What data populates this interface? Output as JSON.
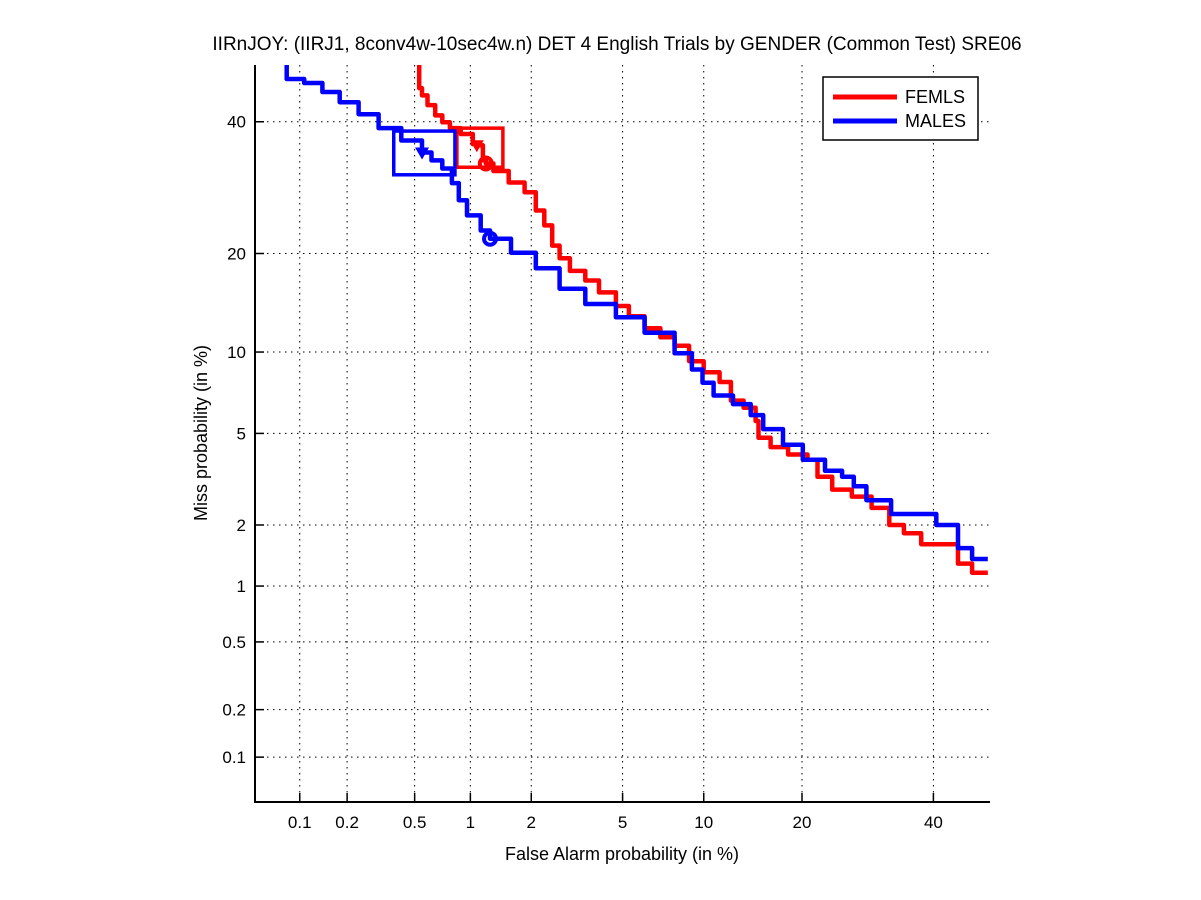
{
  "chart_data": {
    "type": "line",
    "subtype": "DET-curve",
    "title": "IIRnJOY: (IIRJ1, 8conv4w-10sec4w.n) DET 4 English Trials by GENDER (Common Test) SRE06",
    "xlabel": "False Alarm probability (in %)",
    "ylabel": "Miss probability (in %)",
    "scale": "normal-deviate (probit) on both axes",
    "xlim": [
      0.05,
      50
    ],
    "ylim": [
      0.05,
      50
    ],
    "xticks": [
      0.1,
      0.2,
      0.5,
      1,
      2,
      5,
      10,
      20,
      40
    ],
    "xtick_labels": [
      "0.1",
      "0.2",
      "0.5",
      "1",
      "2",
      "5",
      "10",
      "20",
      "40"
    ],
    "yticks": [
      0.1,
      0.2,
      0.5,
      1,
      2,
      5,
      10,
      20,
      40
    ],
    "ytick_labels": [
      "0.1",
      "0.2",
      "0.5",
      "1",
      "2",
      "5",
      "10",
      "20",
      "40"
    ],
    "grid": true,
    "grid_style": "dotted-black",
    "legend_position": "top-right",
    "series": [
      {
        "name": "FEMLS",
        "color": "#ff0000",
        "triangle_marker": [
          1.08,
          36.0
        ],
        "circle_marker": [
          1.2,
          33.0
        ],
        "box": {
          "fa": [
            0.85,
            1.46
          ],
          "miss": [
            32.4,
            38.9
          ]
        },
        "points": [
          [
            0.53,
            50
          ],
          [
            0.53,
            45.9
          ],
          [
            0.55,
            44.6
          ],
          [
            0.59,
            42.9
          ],
          [
            0.65,
            41.1
          ],
          [
            0.71,
            39.9
          ],
          [
            0.78,
            38.9
          ],
          [
            0.89,
            37.9
          ],
          [
            1.03,
            36.2
          ],
          [
            1.08,
            36.0
          ],
          [
            1.16,
            33.5
          ],
          [
            1.2,
            33.0
          ],
          [
            1.31,
            31.8
          ],
          [
            1.56,
            30.0
          ],
          [
            1.86,
            28.5
          ],
          [
            2.1,
            25.8
          ],
          [
            2.3,
            23.7
          ],
          [
            2.5,
            21.0
          ],
          [
            2.7,
            19.4
          ],
          [
            3.0,
            17.9
          ],
          [
            3.5,
            16.8
          ],
          [
            4.0,
            15.5
          ],
          [
            4.7,
            14.1
          ],
          [
            5.3,
            13.1
          ],
          [
            6.1,
            12.0
          ],
          [
            7.0,
            11.2
          ],
          [
            7.9,
            10.5
          ],
          [
            8.9,
            9.3
          ],
          [
            10.0,
            8.5
          ],
          [
            11.3,
            7.85
          ],
          [
            12.3,
            7.5
          ],
          [
            12.3,
            6.7
          ],
          [
            13.5,
            6.3
          ],
          [
            14.7,
            5.6
          ],
          [
            15.0,
            4.8
          ],
          [
            16.3,
            4.4
          ],
          [
            18.3,
            4.1
          ],
          [
            20.7,
            3.9
          ],
          [
            22.0,
            3.8
          ],
          [
            22.0,
            3.3
          ],
          [
            24.0,
            2.9
          ],
          [
            26.8,
            2.7
          ],
          [
            29.8,
            2.4
          ],
          [
            32.6,
            2.0
          ],
          [
            35.0,
            1.83
          ],
          [
            37.9,
            1.62
          ],
          [
            44.3,
            1.58
          ],
          [
            44.3,
            1.3
          ],
          [
            46.8,
            1.3
          ],
          [
            46.8,
            1.17
          ],
          [
            49.6,
            1.17
          ]
        ]
      },
      {
        "name": "MALES",
        "color": "#0000ff",
        "triangle_marker": [
          0.55,
          34.8
        ],
        "circle_marker": [
          1.26,
          21.9
        ],
        "box": {
          "fa": [
            0.38,
            0.83
          ],
          "miss": [
            31.2,
            38.4
          ]
        },
        "points": [
          [
            0.082,
            50
          ],
          [
            0.082,
            47.5
          ],
          [
            0.107,
            46.8
          ],
          [
            0.14,
            45.2
          ],
          [
            0.18,
            43.4
          ],
          [
            0.235,
            41.3
          ],
          [
            0.31,
            38.9
          ],
          [
            0.42,
            36.8
          ],
          [
            0.55,
            34.8
          ],
          [
            0.62,
            33.5
          ],
          [
            0.71,
            32.2
          ],
          [
            0.8,
            29.9
          ],
          [
            0.87,
            27.3
          ],
          [
            0.96,
            25.1
          ],
          [
            1.13,
            23.0
          ],
          [
            1.26,
            21.9
          ],
          [
            1.6,
            20.1
          ],
          [
            2.1,
            18.2
          ],
          [
            2.7,
            15.9
          ],
          [
            3.5,
            14.3
          ],
          [
            4.7,
            13.0
          ],
          [
            6.1,
            11.6
          ],
          [
            7.9,
            9.9
          ],
          [
            9.1,
            8.7
          ],
          [
            9.9,
            7.8
          ],
          [
            10.8,
            7.0
          ],
          [
            12.5,
            6.5
          ],
          [
            14.2,
            5.9
          ],
          [
            15.5,
            5.2
          ],
          [
            17.7,
            4.5
          ],
          [
            20.1,
            3.9
          ],
          [
            23.0,
            3.5
          ],
          [
            25.4,
            3.3
          ],
          [
            27.1,
            3.0
          ],
          [
            29.0,
            2.6
          ],
          [
            32.9,
            2.25
          ],
          [
            40.5,
            2.25
          ],
          [
            40.5,
            2.0
          ],
          [
            44.3,
            2.0
          ],
          [
            44.3,
            1.55
          ],
          [
            46.8,
            1.55
          ],
          [
            46.8,
            1.37
          ],
          [
            49.6,
            1.37
          ]
        ]
      }
    ]
  }
}
